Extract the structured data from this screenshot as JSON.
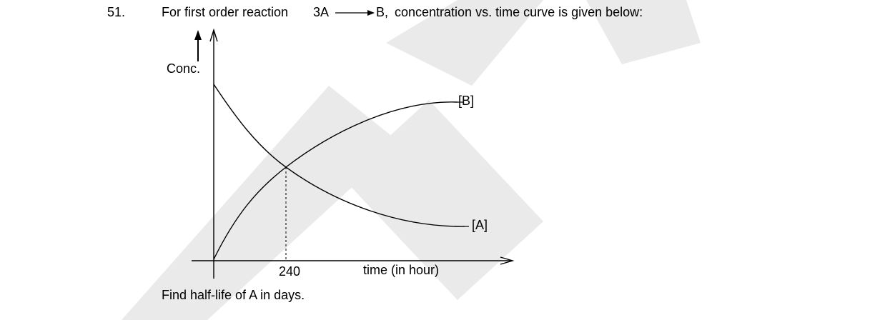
{
  "question": {
    "number": "51.",
    "intro": "For first order reaction",
    "reactant": "3A",
    "product": "B,",
    "rest": "concentration vs. time curve is given below:",
    "prompt": "Find half-life of A in days."
  },
  "diagram": {
    "y_label": "Conc.",
    "curve_b": "[B]",
    "curve_a": "[A]",
    "time_mark": 240,
    "x_label": "time (in hour)"
  }
}
